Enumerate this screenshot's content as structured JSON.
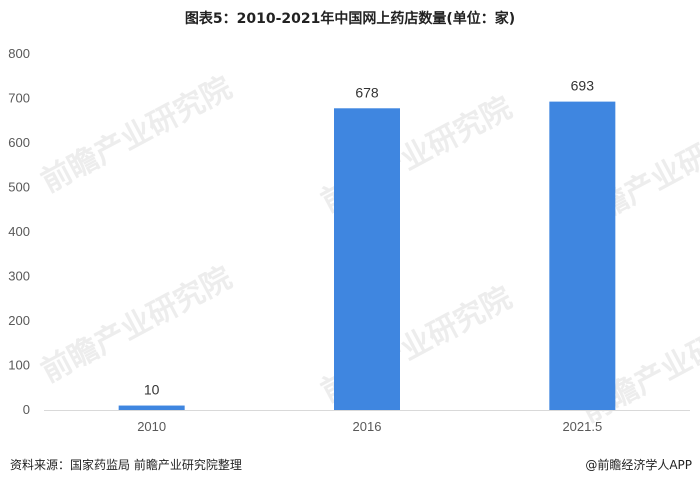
{
  "title": "图表5：2010-2021年中国网上药店数量(单位：家)",
  "source": "资料来源：国家药监局 前瞻产业研究院整理",
  "brand": "@前瞻经济学人APP",
  "watermark": "前瞻产业研究院",
  "colors": {
    "bar": "#3f86e0",
    "axis": "#d9d9d9"
  },
  "chart_data": {
    "type": "bar",
    "categories": [
      "2010",
      "2016",
      "2021.5"
    ],
    "values": [
      10,
      678,
      693
    ],
    "ylim": [
      0,
      800
    ],
    "yticks": [
      0,
      100,
      200,
      300,
      400,
      500,
      600,
      700,
      800
    ],
    "grid": false,
    "data_labels": true
  }
}
